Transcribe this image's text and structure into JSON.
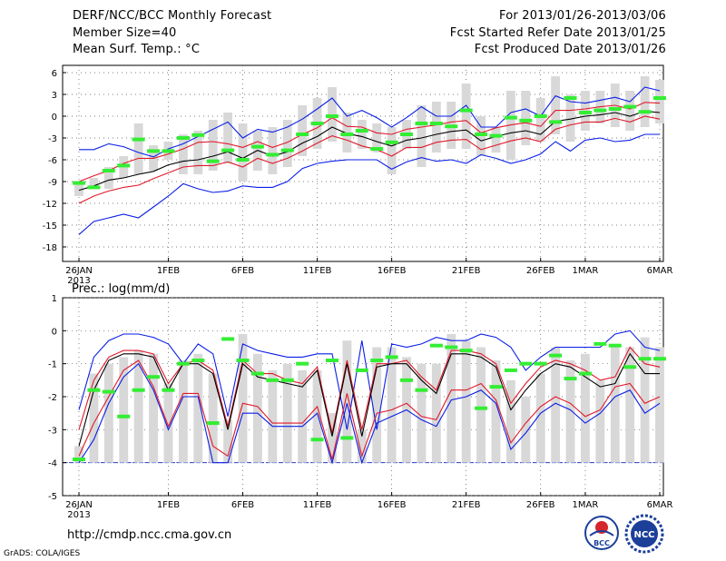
{
  "header": {
    "title": "DERF/NCC/BCC Monthly Forecast",
    "member_size": "Member Size=40",
    "variable": "Mean Surf. Temp.: °C",
    "period": "For 2013/01/26-2013/03/06",
    "fcst_started": "Fcst Started Refer Date 2013/01/25",
    "fcst_produced": "Fcst Produced Date 2013/01/26"
  },
  "footer": {
    "url": "http://cmdp.ncc.cma.gov.cn",
    "grads": "GrADS: COLA/IGES",
    "logo_bcc": "BCC",
    "logo_ncc": "NCC"
  },
  "colors": {
    "bar": "#d8d8d8",
    "mean": "#000000",
    "spread": "#e0182a",
    "envelope": "#0a1ee6",
    "observed": "#33ee33",
    "baseline": "#2a3cd0"
  },
  "chart_data": [
    {
      "type": "line",
      "title": "Mean Surf. Temp.: °C",
      "ylim": [
        -20,
        7
      ],
      "yticks": [
        6,
        3,
        0,
        -3,
        -6,
        -9,
        -12,
        -15,
        -18
      ],
      "xticks": [
        {
          "i": 0,
          "label": "26JAN"
        },
        {
          "i": 6,
          "label": "1FEB"
        },
        {
          "i": 11,
          "label": "6FEB"
        },
        {
          "i": 16,
          "label": "11FEB"
        },
        {
          "i": 21,
          "label": "16FEB"
        },
        {
          "i": 26,
          "label": "21FEB"
        },
        {
          "i": 31,
          "label": "26FEB"
        },
        {
          "i": 34,
          "label": "1MAR"
        },
        {
          "i": 39,
          "label": "6MAR"
        }
      ],
      "year_label": "2013",
      "days": 40,
      "series": [
        {
          "name": "max",
          "values": [
            -4.6,
            -4.6,
            -3.8,
            -4.2,
            -5.0,
            -5.6,
            -4.5,
            -3.8,
            -2.8,
            -1.8,
            -0.8,
            -3.0,
            -1.8,
            -2.2,
            -1.5,
            -0.4,
            1.0,
            2.5,
            0.0,
            0.8,
            -0.2,
            -1.5,
            -0.2,
            1.3,
            0.0,
            0.0,
            1.5,
            -1.5,
            -1.5,
            0.5,
            1.0,
            0.0,
            2.8,
            2.0,
            1.8,
            2.2,
            2.6,
            2.0,
            4.0,
            3.5
          ]
        },
        {
          "name": "upper",
          "values": [
            -9.0,
            -8.2,
            -7.5,
            -6.5,
            -5.8,
            -5.8,
            -5.2,
            -4.5,
            -3.6,
            -3.5,
            -3.8,
            -4.3,
            -3.5,
            -4.3,
            -3.6,
            -2.5,
            -1.6,
            -0.2,
            -1.4,
            -1.5,
            -2.3,
            -2.5,
            -1.8,
            -1.5,
            -1.2,
            -0.8,
            -0.6,
            -2.3,
            -1.6,
            -1.2,
            -0.9,
            -1.4,
            0.8,
            0.8,
            1.0,
            1.3,
            1.5,
            1.0,
            1.9,
            1.8
          ]
        },
        {
          "name": "mean",
          "values": [
            -10.2,
            -9.6,
            -8.8,
            -8.5,
            -8.0,
            -7.6,
            -6.7,
            -6.2,
            -6.0,
            -5.5,
            -4.9,
            -5.8,
            -4.7,
            -5.5,
            -4.9,
            -3.7,
            -2.8,
            -1.5,
            -2.4,
            -2.8,
            -3.5,
            -4.1,
            -3.3,
            -3.0,
            -2.5,
            -2.1,
            -1.9,
            -3.4,
            -2.8,
            -2.3,
            -2.0,
            -2.5,
            -0.7,
            -0.4,
            0.0,
            0.2,
            0.5,
            0.0,
            0.7,
            0.5
          ]
        },
        {
          "name": "lower",
          "values": [
            -12.0,
            -11.0,
            -10.3,
            -9.8,
            -9.5,
            -8.6,
            -7.8,
            -7.0,
            -6.8,
            -6.8,
            -6.3,
            -7.0,
            -5.8,
            -6.5,
            -5.8,
            -4.8,
            -3.7,
            -2.7,
            -3.3,
            -4.1,
            -4.6,
            -5.5,
            -4.3,
            -4.3,
            -3.6,
            -3.3,
            -3.2,
            -4.6,
            -4.0,
            -3.4,
            -3.0,
            -3.5,
            -1.8,
            -1.2,
            -0.8,
            -0.8,
            -0.3,
            -0.8,
            0.0,
            -0.4
          ]
        },
        {
          "name": "min",
          "values": [
            -16.3,
            -14.5,
            -14.0,
            -13.5,
            -14.0,
            -12.5,
            -11.0,
            -9.3,
            -10.0,
            -10.5,
            -10.3,
            -9.6,
            -9.8,
            -9.8,
            -9.0,
            -7.2,
            -6.5,
            -6.2,
            -6.0,
            -6.0,
            -6.0,
            -7.3,
            -6.3,
            -5.7,
            -6.2,
            -6.0,
            -6.5,
            -5.3,
            -5.8,
            -6.5,
            -6.0,
            -5.2,
            -3.5,
            -4.8,
            -3.3,
            -3.0,
            -3.5,
            -3.3,
            -2.5,
            -2.5
          ]
        },
        {
          "name": "bar_top",
          "values": [
            -9.0,
            -8.5,
            -7.0,
            -5.5,
            -1.0,
            -4.0,
            -3.5,
            -2.5,
            -2.0,
            -0.5,
            0.5,
            -1.0,
            -2.0,
            -1.5,
            -0.5,
            1.5,
            2.5,
            4.0,
            0.5,
            -0.5,
            -1.0,
            -1.5,
            -0.5,
            1.5,
            2.0,
            2.0,
            4.5,
            0.0,
            -1.5,
            3.5,
            3.5,
            2.5,
            5.5,
            3.0,
            3.5,
            3.5,
            4.5,
            3.5,
            5.5,
            5.0
          ]
        },
        {
          "name": "bar_bottom",
          "values": [
            -11.0,
            -10.0,
            -10.0,
            -8.5,
            -8.0,
            -7.5,
            -6.0,
            -8.0,
            -8.0,
            -7.5,
            -6.5,
            -9.0,
            -7.5,
            -8.0,
            -7.0,
            -5.5,
            -4.5,
            -3.5,
            -5.0,
            -4.5,
            -5.0,
            -8.0,
            -4.5,
            -7.0,
            -5.0,
            -4.5,
            -4.5,
            -5.5,
            -5.0,
            -6.0,
            -4.0,
            -3.5,
            -2.5,
            -3.5,
            -2.0,
            -1.0,
            -1.5,
            -2.0,
            -1.5,
            -1.0
          ]
        },
        {
          "name": "observed",
          "values": [
            -9.2,
            -9.8,
            -7.5,
            -6.8,
            -3.2,
            -4.8,
            -4.8,
            -3.0,
            -2.6,
            -6.2,
            -4.7,
            -6.0,
            -4.2,
            -5.3,
            -4.7,
            -2.5,
            -1.0,
            0.0,
            -2.5,
            -2.0,
            -4.5,
            -3.6,
            -2.5,
            -1.0,
            -1.0,
            -1.4,
            0.8,
            -2.5,
            -2.7,
            -0.2,
            -0.6,
            0.0,
            -0.8,
            2.5,
            0.5,
            0.8,
            1.0,
            1.3,
            0.6,
            2.5
          ]
        }
      ]
    },
    {
      "type": "line",
      "title": "Prec.: log(mm/d)",
      "ylim": [
        -5,
        1
      ],
      "yticks": [
        1,
        0,
        -1,
        -2,
        -3,
        -4,
        -5
      ],
      "baseline": -4,
      "xticks": [
        {
          "i": 0,
          "label": "26JAN"
        },
        {
          "i": 6,
          "label": "1FEB"
        },
        {
          "i": 11,
          "label": "6FEB"
        },
        {
          "i": 16,
          "label": "11FEB"
        },
        {
          "i": 21,
          "label": "16FEB"
        },
        {
          "i": 26,
          "label": "21FEB"
        },
        {
          "i": 31,
          "label": "26FEB"
        },
        {
          "i": 34,
          "label": "1MAR"
        },
        {
          "i": 39,
          "label": "6MAR"
        }
      ],
      "year_label": "2013",
      "days": 40,
      "series": [
        {
          "name": "max",
          "values": [
            -2.4,
            -0.8,
            -0.3,
            -0.1,
            -0.1,
            -0.2,
            -0.4,
            -1.0,
            -0.4,
            -0.7,
            -2.6,
            -0.4,
            -0.6,
            -0.7,
            -0.8,
            -0.8,
            -0.7,
            -0.7,
            -3.0,
            -0.3,
            -3.0,
            -0.4,
            -0.5,
            -0.4,
            -0.2,
            -0.3,
            -0.3,
            -0.1,
            -0.2,
            -0.5,
            -1.2,
            -0.8,
            -0.5,
            -0.5,
            -0.5,
            -0.5,
            -0.1,
            0.0,
            -0.5,
            -0.6
          ]
        },
        {
          "name": "upper",
          "values": [
            -3.0,
            -1.5,
            -0.8,
            -0.6,
            -0.6,
            -0.7,
            -1.6,
            -1.0,
            -0.9,
            -1.2,
            -2.9,
            -0.9,
            -1.3,
            -1.3,
            -1.5,
            -1.6,
            -1.1,
            -3.1,
            -0.9,
            -3.0,
            -1.0,
            -1.0,
            -0.9,
            -1.4,
            -1.8,
            -0.6,
            -0.6,
            -0.7,
            -1.0,
            -2.2,
            -1.6,
            -1.1,
            -0.9,
            -1.0,
            -1.2,
            -1.5,
            -1.4,
            -0.5,
            -1.0,
            -1.1
          ]
        },
        {
          "name": "mean",
          "values": [
            -3.5,
            -1.8,
            -0.9,
            -0.7,
            -0.7,
            -0.8,
            -1.8,
            -1.0,
            -1.0,
            -1.3,
            -3.0,
            -1.0,
            -1.4,
            -1.5,
            -1.6,
            -1.7,
            -1.2,
            -3.2,
            -1.0,
            -3.2,
            -1.1,
            -1.0,
            -1.0,
            -1.5,
            -1.9,
            -0.7,
            -0.7,
            -0.8,
            -1.1,
            -2.4,
            -1.8,
            -1.3,
            -1.0,
            -1.1,
            -1.4,
            -1.7,
            -1.6,
            -0.7,
            -1.3,
            -1.3
          ]
        },
        {
          "name": "lower",
          "values": [
            -3.8,
            -2.8,
            -2.0,
            -1.2,
            -0.9,
            -1.7,
            -2.9,
            -1.9,
            -1.9,
            -3.5,
            -3.8,
            -2.2,
            -2.3,
            -2.8,
            -2.8,
            -2.8,
            -2.3,
            -3.9,
            -1.9,
            -3.8,
            -2.5,
            -2.4,
            -2.2,
            -2.6,
            -2.7,
            -1.8,
            -1.8,
            -1.6,
            -2.1,
            -3.4,
            -2.8,
            -2.3,
            -2.0,
            -2.2,
            -2.6,
            -2.4,
            -1.7,
            -1.6,
            -2.2,
            -2.0
          ]
        },
        {
          "name": "min",
          "values": [
            -4.0,
            -3.3,
            -2.2,
            -1.4,
            -1.0,
            -1.8,
            -3.0,
            -2.0,
            -2.0,
            -4.0,
            -4.0,
            -2.5,
            -2.5,
            -2.9,
            -2.9,
            -2.9,
            -2.5,
            -4.0,
            -2.2,
            -4.0,
            -2.8,
            -2.6,
            -2.4,
            -2.7,
            -2.9,
            -2.1,
            -2.0,
            -1.8,
            -2.2,
            -3.6,
            -3.1,
            -2.5,
            -2.2,
            -2.4,
            -2.8,
            -2.5,
            -2.0,
            -1.8,
            -2.5,
            -2.2
          ]
        },
        {
          "name": "bar_top",
          "values": [
            -3.5,
            -1.3,
            -1.0,
            -0.8,
            -0.6,
            -0.7,
            -1.6,
            -0.9,
            -0.7,
            -1.3,
            -2.7,
            -0.1,
            -0.7,
            -1.2,
            -1.0,
            -1.2,
            -1.2,
            -2.5,
            -0.3,
            -3.0,
            -0.5,
            -0.5,
            -0.8,
            -1.0,
            -1.0,
            -0.1,
            -0.3,
            -0.5,
            -0.9,
            -1.5,
            -2.0,
            -1.3,
            -0.5,
            -0.9,
            -0.7,
            -1.5,
            -0.5,
            -0.5,
            -0.2,
            -0.5
          ]
        },
        {
          "name": "bar_bottom",
          "values": [
            -4.0,
            -4.0,
            -4.0,
            -4.0,
            -4.0,
            -4.0,
            -4.0,
            -4.0,
            -4.0,
            -4.0,
            -4.0,
            -4.0,
            -4.0,
            -4.0,
            -4.0,
            -4.0,
            -4.0,
            -4.0,
            -4.0,
            -4.0,
            -4.0,
            -4.0,
            -4.0,
            -4.0,
            -4.0,
            -4.0,
            -4.0,
            -4.0,
            -4.0,
            -4.0,
            -4.0,
            -4.0,
            -4.0,
            -4.0,
            -4.0,
            -4.0,
            -4.0,
            -4.0,
            -4.0,
            -4.0
          ]
        },
        {
          "name": "observed",
          "values": [
            -3.9,
            -1.8,
            -1.85,
            -2.6,
            -1.8,
            -1.4,
            -1.8,
            -1.0,
            -0.9,
            -2.8,
            -0.25,
            -0.9,
            -1.3,
            -1.5,
            -1.5,
            -1.0,
            -3.3,
            -0.9,
            -3.25,
            -1.2,
            -0.9,
            -0.8,
            -1.5,
            -1.8,
            -0.45,
            -0.5,
            -0.6,
            -2.35,
            -1.7,
            -1.2,
            -1.0,
            -1.0,
            -0.75,
            -1.45,
            -1.3,
            -0.4,
            -0.45,
            -1.1,
            -0.85,
            -0.85
          ]
        }
      ]
    }
  ]
}
